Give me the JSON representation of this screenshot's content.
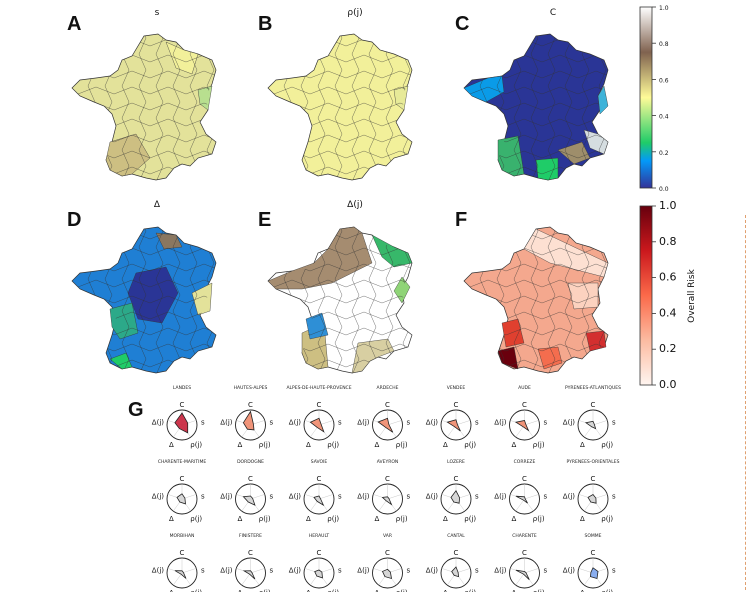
{
  "panels": {
    "A": {
      "letter": "A",
      "title": "s"
    },
    "B": {
      "letter": "B",
      "title": "ρ(j)"
    },
    "C": {
      "letter": "C",
      "title": "C"
    },
    "D": {
      "letter": "D",
      "title": "Δ"
    },
    "E": {
      "letter": "E",
      "title": "Δ(j)"
    },
    "F": {
      "letter": "F",
      "title": ""
    },
    "G": {
      "letter": "G"
    }
  },
  "colorbar_top": {
    "colormap": "terrain",
    "ticks": [
      "0.0",
      "0.2",
      "0.4",
      "0.6",
      "0.8",
      "1.0"
    ]
  },
  "colorbar_bottom": {
    "colormap": "Reds",
    "label": "Overall Risk",
    "ticks": [
      "0.0",
      "0.2",
      "0.4",
      "0.6",
      "0.8",
      "1.0"
    ]
  },
  "colors": {
    "map_fill_A": "#e3e29a",
    "map_fill_B": "#f2f09a",
    "map_fill_C": "#2a3596",
    "map_fill_D": "#1f7fd4",
    "map_fill_E": "#a58c70",
    "map_fill_F": "#f4a88e",
    "radar_red": "#c8203a",
    "radar_salmon": "#f08a6c",
    "radar_grey": "#d4d4d4",
    "radar_blue": "#7ea6ee"
  },
  "radar_axes": [
    "C",
    "s",
    "ρ(j)",
    "Δ",
    "Δ(j)"
  ],
  "chart_data": {
    "type": "radar",
    "axes": [
      "C",
      "s",
      "ρ(j)",
      "Δ",
      "Δ(j)"
    ],
    "series": [
      {
        "name": "LANDES",
        "values": [
          0.8,
          0.4,
          0.65,
          0.3,
          0.5
        ]
      },
      {
        "name": "HAUTES-ALPES",
        "values": [
          0.9,
          0.2,
          0.4,
          0.35,
          0.5
        ]
      },
      {
        "name": "ALPES-DE-HAUTE-PROVENCE",
        "values": [
          0.45,
          0.15,
          0.55,
          0.2,
          0.6
        ]
      },
      {
        "name": "ARDECHE",
        "values": [
          0.45,
          0.1,
          0.6,
          0.2,
          0.65
        ]
      },
      {
        "name": "VENDEE",
        "values": [
          0.35,
          0.1,
          0.5,
          0.15,
          0.6
        ]
      },
      {
        "name": "AUDE",
        "values": [
          0.3,
          0.1,
          0.45,
          0.15,
          0.6
        ]
      },
      {
        "name": "PYRENEES-ATLANTIQUES",
        "values": [
          0.25,
          0.1,
          0.3,
          0.15,
          0.5
        ]
      },
      {
        "name": "CHARENTE-MARITIME",
        "values": [
          0.35,
          0.2,
          0.4,
          0.25,
          0.35
        ]
      },
      {
        "name": "DORDOGNE",
        "values": [
          0.2,
          0.15,
          0.5,
          0.25,
          0.5
        ]
      },
      {
        "name": "SAVOIE",
        "values": [
          0.2,
          0.1,
          0.5,
          0.2,
          0.35
        ]
      },
      {
        "name": "AVEYRON",
        "values": [
          0.15,
          0.1,
          0.45,
          0.15,
          0.35
        ]
      },
      {
        "name": "LOZERE",
        "values": [
          0.55,
          0.25,
          0.35,
          0.25,
          0.35
        ]
      },
      {
        "name": "CORREZE",
        "values": [
          0.15,
          0.05,
          0.35,
          0.1,
          0.6
        ]
      },
      {
        "name": "PYRENEES-ORIENTALES",
        "values": [
          0.3,
          0.2,
          0.35,
          0.25,
          0.35
        ]
      },
      {
        "name": "MORBIHAN",
        "values": [
          0.15,
          0.1,
          0.45,
          0.1,
          0.5
        ]
      },
      {
        "name": "FINISTERE",
        "values": [
          0.15,
          0.1,
          0.5,
          0.1,
          0.45
        ]
      },
      {
        "name": "HERAULT",
        "values": [
          0.2,
          0.2,
          0.4,
          0.25,
          0.3
        ]
      },
      {
        "name": "VAR",
        "values": [
          0.25,
          0.2,
          0.45,
          0.3,
          0.35
        ]
      },
      {
        "name": "CANTAL",
        "values": [
          0.4,
          0.15,
          0.3,
          0.2,
          0.3
        ]
      },
      {
        "name": "CHARENTE",
        "values": [
          0.1,
          0.1,
          0.55,
          0.1,
          0.6
        ]
      },
      {
        "name": "SOMME",
        "values": [
          0.35,
          0.35,
          0.45,
          0.3,
          0.15
        ]
      }
    ]
  }
}
